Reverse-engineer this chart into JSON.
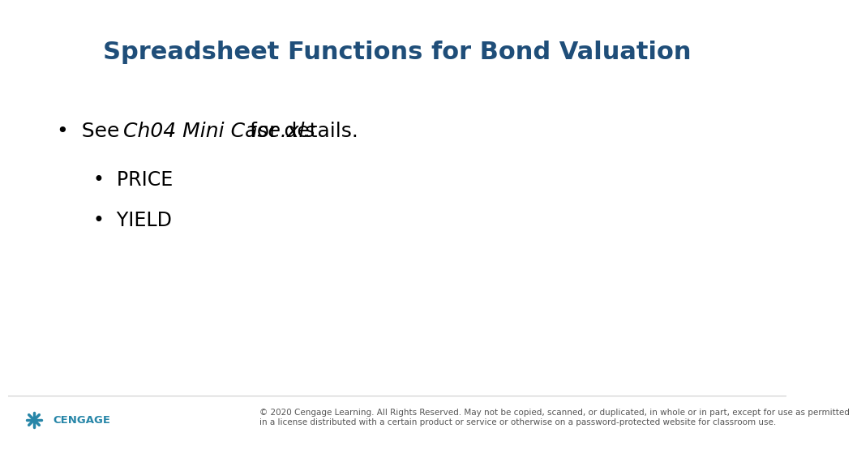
{
  "title": "Spreadsheet Functions for Bond Valuation",
  "title_color": "#1F4E79",
  "title_fontsize": 22,
  "title_fontweight": "bold",
  "bg_color": "#FFFFFF",
  "bullet_color": "#000000",
  "bullet1_fontsize": 18,
  "bullet2_fontsize": 17,
  "cengage_text": "CENGAGE",
  "cengage_color": "#2786A8",
  "footer_line1": "© 2020 Cengage Learning. All Rights Reserved. May not be copied, scanned, or duplicated, in whole or in part, except for use as permitted",
  "footer_line2": "in a license distributed with a certain product or service or otherwise on a password-protected website for classroom use.",
  "footer_fontsize": 7.5,
  "footer_color": "#555555",
  "line_color": "#CCCCCC"
}
